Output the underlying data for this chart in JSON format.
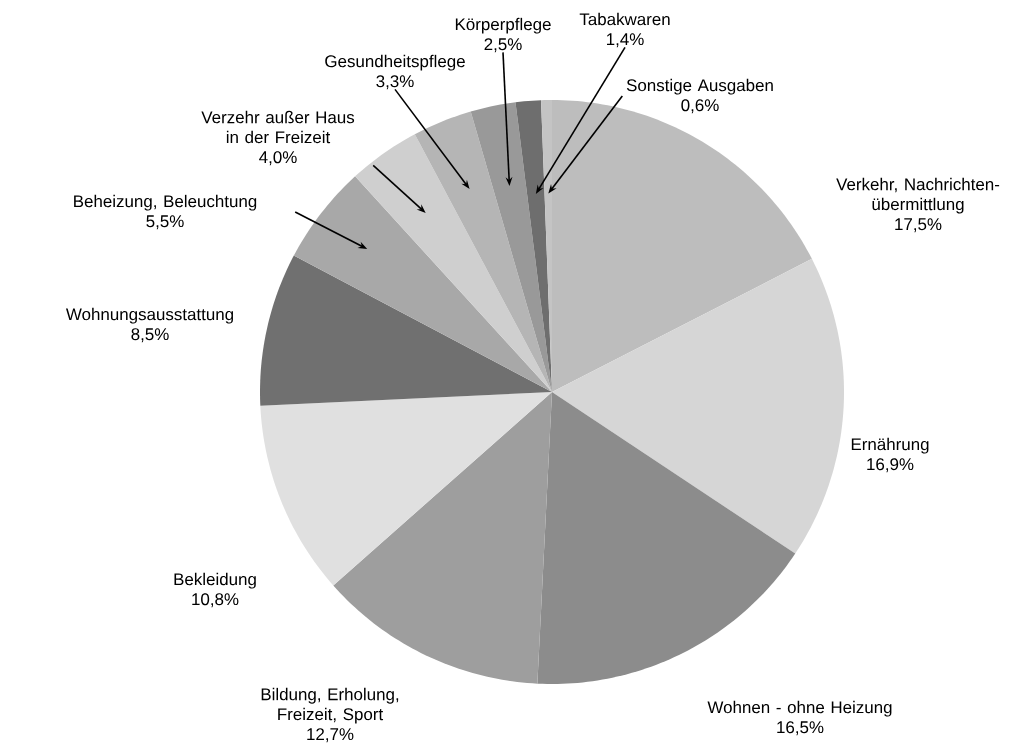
{
  "chart_data": {
    "type": "pie",
    "categories": [
      "Verkehr, Nachrichten-übermittlung",
      "Ernährung",
      "Wohnen - ohne Heizung",
      "Bildung, Erholung, Freizeit, Sport",
      "Bekleidung",
      "Wohnungsausstattung",
      "Beheizung, Beleuchtung",
      "Verzehr außer Haus in der Freizeit",
      "Gesundheitspflege",
      "Körperpflege",
      "Tabakwaren",
      "Sonstige Ausgaben"
    ],
    "values": [
      17.5,
      16.9,
      16.5,
      12.7,
      10.8,
      8.5,
      5.5,
      4.0,
      3.3,
      2.5,
      1.4,
      0.6
    ],
    "value_labels": [
      "17,5%",
      "16,9%",
      "16,5%",
      "12,7%",
      "10,8%",
      "8,5%",
      "5,5%",
      "4,0%",
      "3,3%",
      "2,5%",
      "1,4%",
      "0,6%"
    ],
    "colors": [
      "#bdbdbd",
      "#d6d6d6",
      "#8c8c8c",
      "#9e9e9e",
      "#e0e0e0",
      "#707070",
      "#a8a8a8",
      "#cfcfcf",
      "#b5b5b5",
      "#999999",
      "#6e6e6e",
      "#c4c4c4"
    ]
  }
}
